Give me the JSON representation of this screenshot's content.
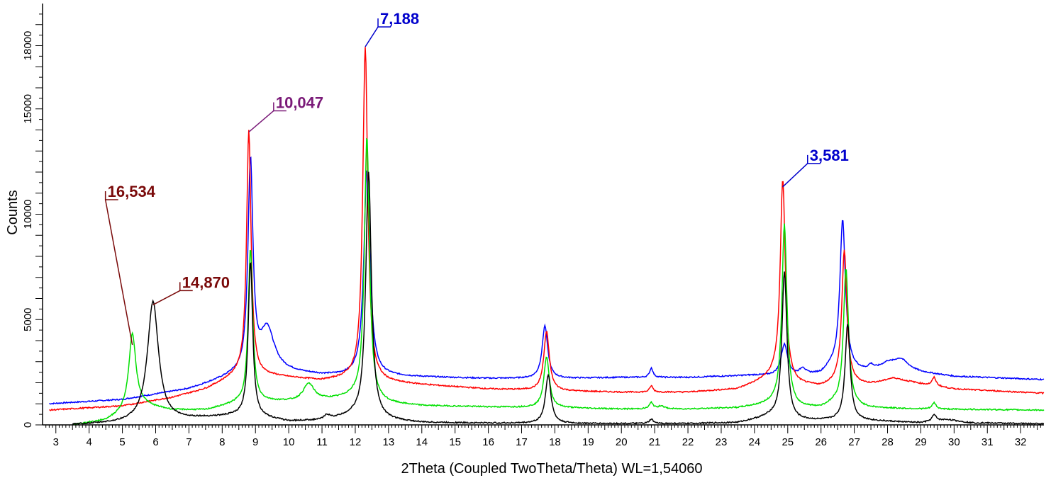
{
  "chart_data": {
    "type": "line",
    "xlabel": "2Theta (Coupled TwoTheta/Theta) WL=1,54060",
    "ylabel": "Counts",
    "xlim": [
      2.6,
      32.7
    ],
    "ylim": [
      0,
      20000
    ],
    "x_ticks": [
      "3",
      "4",
      "5",
      "6",
      "7",
      "8",
      "9",
      "10",
      "11",
      "12",
      "13",
      "14",
      "15",
      "16",
      "17",
      "18",
      "19",
      "20",
      "21",
      "22",
      "23",
      "24",
      "25",
      "26",
      "27",
      "28",
      "29",
      "30",
      "31",
      "32"
    ],
    "y_ticks": [
      {
        "value": 0,
        "label": "0"
      },
      {
        "value": 5000,
        "label": "5000"
      },
      {
        "value": 10000,
        "label": "10000"
      },
      {
        "value": 15000,
        "label": "15000"
      },
      {
        "value": 18000,
        "label": "18000"
      }
    ],
    "grid": false,
    "series": [
      {
        "color": "#0000ff",
        "baseline": [
          [
            2.8,
            1000
          ],
          [
            5,
            1200
          ],
          [
            7,
            1700
          ],
          [
            8.3,
            2300
          ],
          [
            9.6,
            2550
          ],
          [
            11,
            2350
          ],
          [
            12,
            2300
          ],
          [
            13,
            2300
          ],
          [
            16,
            2200
          ],
          [
            17,
            2200
          ],
          [
            18.3,
            2200
          ],
          [
            20,
            2250
          ],
          [
            22,
            2250
          ],
          [
            24,
            2350
          ],
          [
            25,
            2300
          ],
          [
            26,
            2400
          ],
          [
            26.3,
            2700
          ],
          [
            27.5,
            2500
          ],
          [
            28,
            2900
          ],
          [
            29,
            2500
          ],
          [
            30,
            2300
          ],
          [
            32.7,
            2150
          ]
        ],
        "peaks": [
          [
            8.85,
            10000,
            0.09
          ],
          [
            9.35,
            2000,
            0.25
          ],
          [
            12.35,
            9800,
            0.11
          ],
          [
            17.7,
            2500,
            0.1
          ],
          [
            20.9,
            450,
            0.06
          ],
          [
            24.9,
            1500,
            0.12
          ],
          [
            25.45,
            300,
            0.1
          ],
          [
            26.65,
            7100,
            0.1
          ],
          [
            27.5,
            300,
            0.1
          ],
          [
            28.4,
            400,
            0.25
          ]
        ]
      },
      {
        "color": "#ff0000",
        "baseline": [
          [
            2.8,
            700
          ],
          [
            5,
            900
          ],
          [
            6.5,
            1300
          ],
          [
            7.5,
            1700
          ],
          [
            8.5,
            2400
          ],
          [
            9.6,
            2300
          ],
          [
            11,
            2100
          ],
          [
            11.8,
            2200
          ],
          [
            13,
            2000
          ],
          [
            14,
            1900
          ],
          [
            16,
            1700
          ],
          [
            18.3,
            1600
          ],
          [
            20,
            1550
          ],
          [
            22,
            1550
          ],
          [
            23.5,
            1700
          ],
          [
            24.6,
            2300
          ],
          [
            25.3,
            1900
          ],
          [
            26,
            1800
          ],
          [
            26.5,
            2000
          ],
          [
            27.4,
            1900
          ],
          [
            28,
            2000
          ],
          [
            28.7,
            2000
          ],
          [
            30,
            1700
          ],
          [
            32.7,
            1500
          ]
        ],
        "peaks": [
          [
            8.8,
            11600,
            0.08
          ],
          [
            12.3,
            15800,
            0.09
          ],
          [
            17.75,
            2800,
            0.1
          ],
          [
            20.9,
            300,
            0.06
          ],
          [
            24.85,
            9500,
            0.09
          ],
          [
            26.7,
            6300,
            0.09
          ],
          [
            28.2,
            200,
            0.3
          ],
          [
            29.4,
            400,
            0.07
          ]
        ]
      },
      {
        "color": "#00e000",
        "baseline": [
          [
            3.5,
            0
          ],
          [
            4.5,
            200
          ],
          [
            5.1,
            600
          ],
          [
            5.6,
            900
          ],
          [
            6.5,
            700
          ],
          [
            7.5,
            700
          ],
          [
            8.4,
            1000
          ],
          [
            9.3,
            1100
          ],
          [
            10.2,
            1100
          ],
          [
            11.3,
            1200
          ],
          [
            11.9,
            1300
          ],
          [
            13,
            1000
          ],
          [
            14,
            900
          ],
          [
            16,
            850
          ],
          [
            18.3,
            800
          ],
          [
            20,
            750
          ],
          [
            22,
            750
          ],
          [
            23.5,
            800
          ],
          [
            24.6,
            1000
          ],
          [
            25.3,
            800
          ],
          [
            26,
            800
          ],
          [
            26.4,
            1000
          ],
          [
            27.4,
            800
          ],
          [
            29,
            750
          ],
          [
            32.7,
            700
          ]
        ],
        "peaks": [
          [
            5.3,
            3600,
            0.13
          ],
          [
            8.85,
            7300,
            0.08
          ],
          [
            10.6,
            800,
            0.2
          ],
          [
            12.35,
            12500,
            0.09
          ],
          [
            17.75,
            2400,
            0.1
          ],
          [
            20.9,
            300,
            0.07
          ],
          [
            21.2,
            150,
            0.1
          ],
          [
            24.9,
            8600,
            0.09
          ],
          [
            26.75,
            6500,
            0.09
          ],
          [
            29.4,
            300,
            0.07
          ]
        ]
      },
      {
        "color": "#000000",
        "baseline": [
          [
            3.5,
            0
          ],
          [
            5,
            80
          ],
          [
            6.5,
            200
          ],
          [
            7.3,
            300
          ],
          [
            8.3,
            400
          ],
          [
            9.3,
            300
          ],
          [
            10,
            150
          ],
          [
            11,
            200
          ],
          [
            11.9,
            400
          ],
          [
            13,
            200
          ],
          [
            14,
            100
          ],
          [
            16,
            80
          ],
          [
            18,
            60
          ],
          [
            20,
            60
          ],
          [
            22,
            60
          ],
          [
            23.5,
            100
          ],
          [
            24.5,
            400
          ],
          [
            25.2,
            200
          ],
          [
            26.2,
            200
          ],
          [
            27.3,
            200
          ],
          [
            29,
            100
          ],
          [
            29.8,
            250
          ],
          [
            30.5,
            100
          ],
          [
            32.7,
            50
          ]
        ],
        "peaks": [
          [
            5.92,
            5700,
            0.2
          ],
          [
            8.85,
            7400,
            0.08
          ],
          [
            11.15,
            200,
            0.1
          ],
          [
            12.4,
            11700,
            0.1
          ],
          [
            17.8,
            2300,
            0.1
          ],
          [
            20.9,
            200,
            0.07
          ],
          [
            24.9,
            7000,
            0.09
          ],
          [
            26.8,
            4600,
            0.09
          ],
          [
            29.4,
            300,
            0.08
          ]
        ]
      }
    ],
    "annotations": [
      {
        "text": "16,534",
        "color": "#7a0a0a",
        "x": 5.3,
        "y": 3800
      },
      {
        "text": "14,870",
        "color": "#7a0a0a",
        "x": 5.92,
        "y": 5700
      },
      {
        "text": "10,047",
        "color": "#7a1a78",
        "x": 8.8,
        "y": 13900
      },
      {
        "text": "7,188",
        "color": "#0000cc",
        "x": 12.3,
        "y": 17950
      },
      {
        "text": "3,581",
        "color": "#0000cc",
        "x": 24.85,
        "y": 11300
      }
    ]
  }
}
